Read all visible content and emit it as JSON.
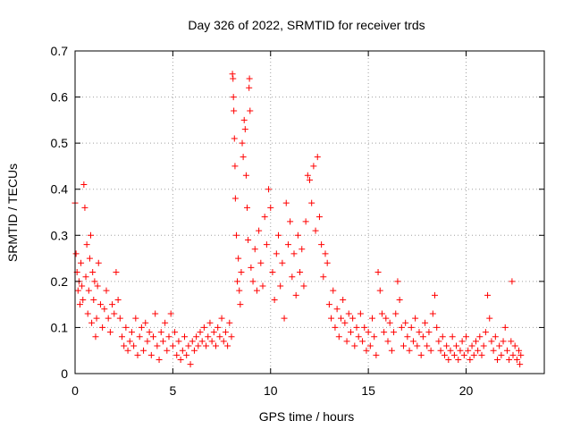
{
  "chart_data": {
    "type": "scatter",
    "title": "Day 326 of 2022, SRMTID for receiver trds",
    "xlabel": "GPS time / hours",
    "ylabel": "SRMTID / TECUs",
    "xlim": [
      0,
      24
    ],
    "ylim": [
      0,
      0.7
    ],
    "x_ticks": [
      0,
      5,
      10,
      15,
      20
    ],
    "x_tick_labels": [
      "0",
      "5",
      "10",
      "15",
      "20"
    ],
    "y_ticks": [
      0,
      0.1,
      0.2,
      0.3,
      0.4,
      0.5,
      0.6,
      0.7
    ],
    "y_tick_labels": [
      "0",
      "0.1",
      "0.2",
      "0.3",
      "0.4",
      "0.5",
      "0.6",
      "0.7"
    ],
    "grid": true,
    "marker": "+",
    "marker_color": "#ff0000",
    "series": [
      {
        "name": "SRMTID",
        "points": [
          [
            0.0,
            0.37
          ],
          [
            0.05,
            0.26
          ],
          [
            0.1,
            0.22
          ],
          [
            0.15,
            0.18
          ],
          [
            0.2,
            0.2
          ],
          [
            0.25,
            0.15
          ],
          [
            0.3,
            0.24
          ],
          [
            0.35,
            0.19
          ],
          [
            0.4,
            0.16
          ],
          [
            0.45,
            0.41
          ],
          [
            0.5,
            0.36
          ],
          [
            0.55,
            0.21
          ],
          [
            0.6,
            0.28
          ],
          [
            0.65,
            0.13
          ],
          [
            0.7,
            0.18
          ],
          [
            0.75,
            0.25
          ],
          [
            0.8,
            0.3
          ],
          [
            0.85,
            0.11
          ],
          [
            0.9,
            0.22
          ],
          [
            0.95,
            0.16
          ],
          [
            1.0,
            0.2
          ],
          [
            1.05,
            0.08
          ],
          [
            1.1,
            0.12
          ],
          [
            1.15,
            0.19
          ],
          [
            1.2,
            0.24
          ],
          [
            1.3,
            0.15
          ],
          [
            1.4,
            0.1
          ],
          [
            1.5,
            0.14
          ],
          [
            1.6,
            0.18
          ],
          [
            1.7,
            0.12
          ],
          [
            1.8,
            0.09
          ],
          [
            1.9,
            0.15
          ],
          [
            2.0,
            0.13
          ],
          [
            2.1,
            0.22
          ],
          [
            2.2,
            0.16
          ],
          [
            2.3,
            0.12
          ],
          [
            2.4,
            0.08
          ],
          [
            2.5,
            0.06
          ],
          [
            2.6,
            0.1
          ],
          [
            2.7,
            0.05
          ],
          [
            2.8,
            0.07
          ],
          [
            2.9,
            0.09
          ],
          [
            3.0,
            0.06
          ],
          [
            3.1,
            0.12
          ],
          [
            3.2,
            0.04
          ],
          [
            3.3,
            0.08
          ],
          [
            3.4,
            0.1
          ],
          [
            3.5,
            0.05
          ],
          [
            3.6,
            0.11
          ],
          [
            3.7,
            0.07
          ],
          [
            3.8,
            0.09
          ],
          [
            3.9,
            0.04
          ],
          [
            4.0,
            0.08
          ],
          [
            4.1,
            0.13
          ],
          [
            4.2,
            0.06
          ],
          [
            4.3,
            0.03
          ],
          [
            4.4,
            0.09
          ],
          [
            4.5,
            0.07
          ],
          [
            4.6,
            0.11
          ],
          [
            4.7,
            0.05
          ],
          [
            4.8,
            0.08
          ],
          [
            4.9,
            0.13
          ],
          [
            5.0,
            0.06
          ],
          [
            5.1,
            0.09
          ],
          [
            5.2,
            0.04
          ],
          [
            5.3,
            0.07
          ],
          [
            5.4,
            0.03
          ],
          [
            5.5,
            0.05
          ],
          [
            5.6,
            0.08
          ],
          [
            5.7,
            0.04
          ],
          [
            5.8,
            0.06
          ],
          [
            5.9,
            0.02
          ],
          [
            6.0,
            0.07
          ],
          [
            6.1,
            0.05
          ],
          [
            6.2,
            0.08
          ],
          [
            6.3,
            0.06
          ],
          [
            6.4,
            0.09
          ],
          [
            6.5,
            0.07
          ],
          [
            6.6,
            0.1
          ],
          [
            6.7,
            0.06
          ],
          [
            6.8,
            0.08
          ],
          [
            6.9,
            0.11
          ],
          [
            7.0,
            0.07
          ],
          [
            7.1,
            0.09
          ],
          [
            7.2,
            0.06
          ],
          [
            7.3,
            0.1
          ],
          [
            7.4,
            0.08
          ],
          [
            7.5,
            0.12
          ],
          [
            7.6,
            0.07
          ],
          [
            7.7,
            0.09
          ],
          [
            7.8,
            0.06
          ],
          [
            7.9,
            0.11
          ],
          [
            8.0,
            0.08
          ],
          [
            8.05,
            0.65
          ],
          [
            8.08,
            0.64
          ],
          [
            8.1,
            0.6
          ],
          [
            8.12,
            0.57
          ],
          [
            8.15,
            0.51
          ],
          [
            8.18,
            0.45
          ],
          [
            8.2,
            0.38
          ],
          [
            8.25,
            0.3
          ],
          [
            8.3,
            0.2
          ],
          [
            8.35,
            0.25
          ],
          [
            8.4,
            0.18
          ],
          [
            8.45,
            0.15
          ],
          [
            8.5,
            0.22
          ],
          [
            8.55,
            0.5
          ],
          [
            8.6,
            0.47
          ],
          [
            8.65,
            0.55
          ],
          [
            8.7,
            0.53
          ],
          [
            8.75,
            0.43
          ],
          [
            8.8,
            0.36
          ],
          [
            8.85,
            0.29
          ],
          [
            8.9,
            0.62
          ],
          [
            8.92,
            0.64
          ],
          [
            8.95,
            0.57
          ],
          [
            9.0,
            0.23
          ],
          [
            9.1,
            0.2
          ],
          [
            9.2,
            0.27
          ],
          [
            9.3,
            0.18
          ],
          [
            9.4,
            0.31
          ],
          [
            9.5,
            0.24
          ],
          [
            9.6,
            0.19
          ],
          [
            9.7,
            0.34
          ],
          [
            9.8,
            0.28
          ],
          [
            9.9,
            0.4
          ],
          [
            10.0,
            0.36
          ],
          [
            10.1,
            0.22
          ],
          [
            10.2,
            0.16
          ],
          [
            10.3,
            0.26
          ],
          [
            10.4,
            0.3
          ],
          [
            10.5,
            0.19
          ],
          [
            10.6,
            0.24
          ],
          [
            10.7,
            0.12
          ],
          [
            10.8,
            0.37
          ],
          [
            10.9,
            0.28
          ],
          [
            11.0,
            0.33
          ],
          [
            11.1,
            0.21
          ],
          [
            11.2,
            0.26
          ],
          [
            11.3,
            0.17
          ],
          [
            11.4,
            0.3
          ],
          [
            11.5,
            0.22
          ],
          [
            11.6,
            0.27
          ],
          [
            11.7,
            0.19
          ],
          [
            11.8,
            0.33
          ],
          [
            11.9,
            0.43
          ],
          [
            12.0,
            0.42
          ],
          [
            12.1,
            0.37
          ],
          [
            12.2,
            0.45
          ],
          [
            12.3,
            0.31
          ],
          [
            12.4,
            0.47
          ],
          [
            12.5,
            0.34
          ],
          [
            12.6,
            0.28
          ],
          [
            12.7,
            0.21
          ],
          [
            12.8,
            0.26
          ],
          [
            12.9,
            0.24
          ],
          [
            13.0,
            0.15
          ],
          [
            13.1,
            0.12
          ],
          [
            13.2,
            0.18
          ],
          [
            13.3,
            0.1
          ],
          [
            13.4,
            0.14
          ],
          [
            13.5,
            0.08
          ],
          [
            13.6,
            0.12
          ],
          [
            13.7,
            0.16
          ],
          [
            13.8,
            0.11
          ],
          [
            13.9,
            0.07
          ],
          [
            14.0,
            0.13
          ],
          [
            14.1,
            0.09
          ],
          [
            14.2,
            0.12
          ],
          [
            14.3,
            0.06
          ],
          [
            14.4,
            0.1
          ],
          [
            14.5,
            0.08
          ],
          [
            14.6,
            0.13
          ],
          [
            14.7,
            0.07
          ],
          [
            14.8,
            0.1
          ],
          [
            14.9,
            0.05
          ],
          [
            15.0,
            0.09
          ],
          [
            15.1,
            0.06
          ],
          [
            15.2,
            0.12
          ],
          [
            15.3,
            0.08
          ],
          [
            15.4,
            0.04
          ],
          [
            15.5,
            0.22
          ],
          [
            15.6,
            0.18
          ],
          [
            15.7,
            0.13
          ],
          [
            15.8,
            0.09
          ],
          [
            15.9,
            0.12
          ],
          [
            16.0,
            0.07
          ],
          [
            16.1,
            0.11
          ],
          [
            16.2,
            0.05
          ],
          [
            16.3,
            0.09
          ],
          [
            16.4,
            0.13
          ],
          [
            16.5,
            0.2
          ],
          [
            16.6,
            0.16
          ],
          [
            16.7,
            0.1
          ],
          [
            16.8,
            0.06
          ],
          [
            16.9,
            0.11
          ],
          [
            17.0,
            0.08
          ],
          [
            17.1,
            0.05
          ],
          [
            17.2,
            0.1
          ],
          [
            17.3,
            0.07
          ],
          [
            17.4,
            0.12
          ],
          [
            17.5,
            0.06
          ],
          [
            17.6,
            0.09
          ],
          [
            17.7,
            0.04
          ],
          [
            17.8,
            0.08
          ],
          [
            17.9,
            0.11
          ],
          [
            18.0,
            0.06
          ],
          [
            18.1,
            0.09
          ],
          [
            18.2,
            0.05
          ],
          [
            18.3,
            0.13
          ],
          [
            18.4,
            0.17
          ],
          [
            18.5,
            0.1
          ],
          [
            18.6,
            0.07
          ],
          [
            18.7,
            0.05
          ],
          [
            18.8,
            0.08
          ],
          [
            18.9,
            0.04
          ],
          [
            19.0,
            0.06
          ],
          [
            19.1,
            0.03
          ],
          [
            19.2,
            0.05
          ],
          [
            19.3,
            0.08
          ],
          [
            19.4,
            0.04
          ],
          [
            19.5,
            0.06
          ],
          [
            19.6,
            0.03
          ],
          [
            19.7,
            0.05
          ],
          [
            19.8,
            0.07
          ],
          [
            19.9,
            0.04
          ],
          [
            20.0,
            0.08
          ],
          [
            20.1,
            0.05
          ],
          [
            20.2,
            0.03
          ],
          [
            20.3,
            0.06
          ],
          [
            20.4,
            0.04
          ],
          [
            20.5,
            0.07
          ],
          [
            20.6,
            0.05
          ],
          [
            20.7,
            0.08
          ],
          [
            20.8,
            0.04
          ],
          [
            20.9,
            0.06
          ],
          [
            21.0,
            0.09
          ],
          [
            21.1,
            0.17
          ],
          [
            21.2,
            0.12
          ],
          [
            21.3,
            0.07
          ],
          [
            21.4,
            0.05
          ],
          [
            21.5,
            0.08
          ],
          [
            21.6,
            0.03
          ],
          [
            21.7,
            0.06
          ],
          [
            21.8,
            0.04
          ],
          [
            21.9,
            0.07
          ],
          [
            22.0,
            0.1
          ],
          [
            22.1,
            0.05
          ],
          [
            22.2,
            0.03
          ],
          [
            22.3,
            0.07
          ],
          [
            22.35,
            0.2
          ],
          [
            22.4,
            0.04
          ],
          [
            22.5,
            0.06
          ],
          [
            22.6,
            0.03
          ],
          [
            22.7,
            0.05
          ],
          [
            22.75,
            0.02
          ],
          [
            22.8,
            0.04
          ]
        ]
      }
    ]
  }
}
